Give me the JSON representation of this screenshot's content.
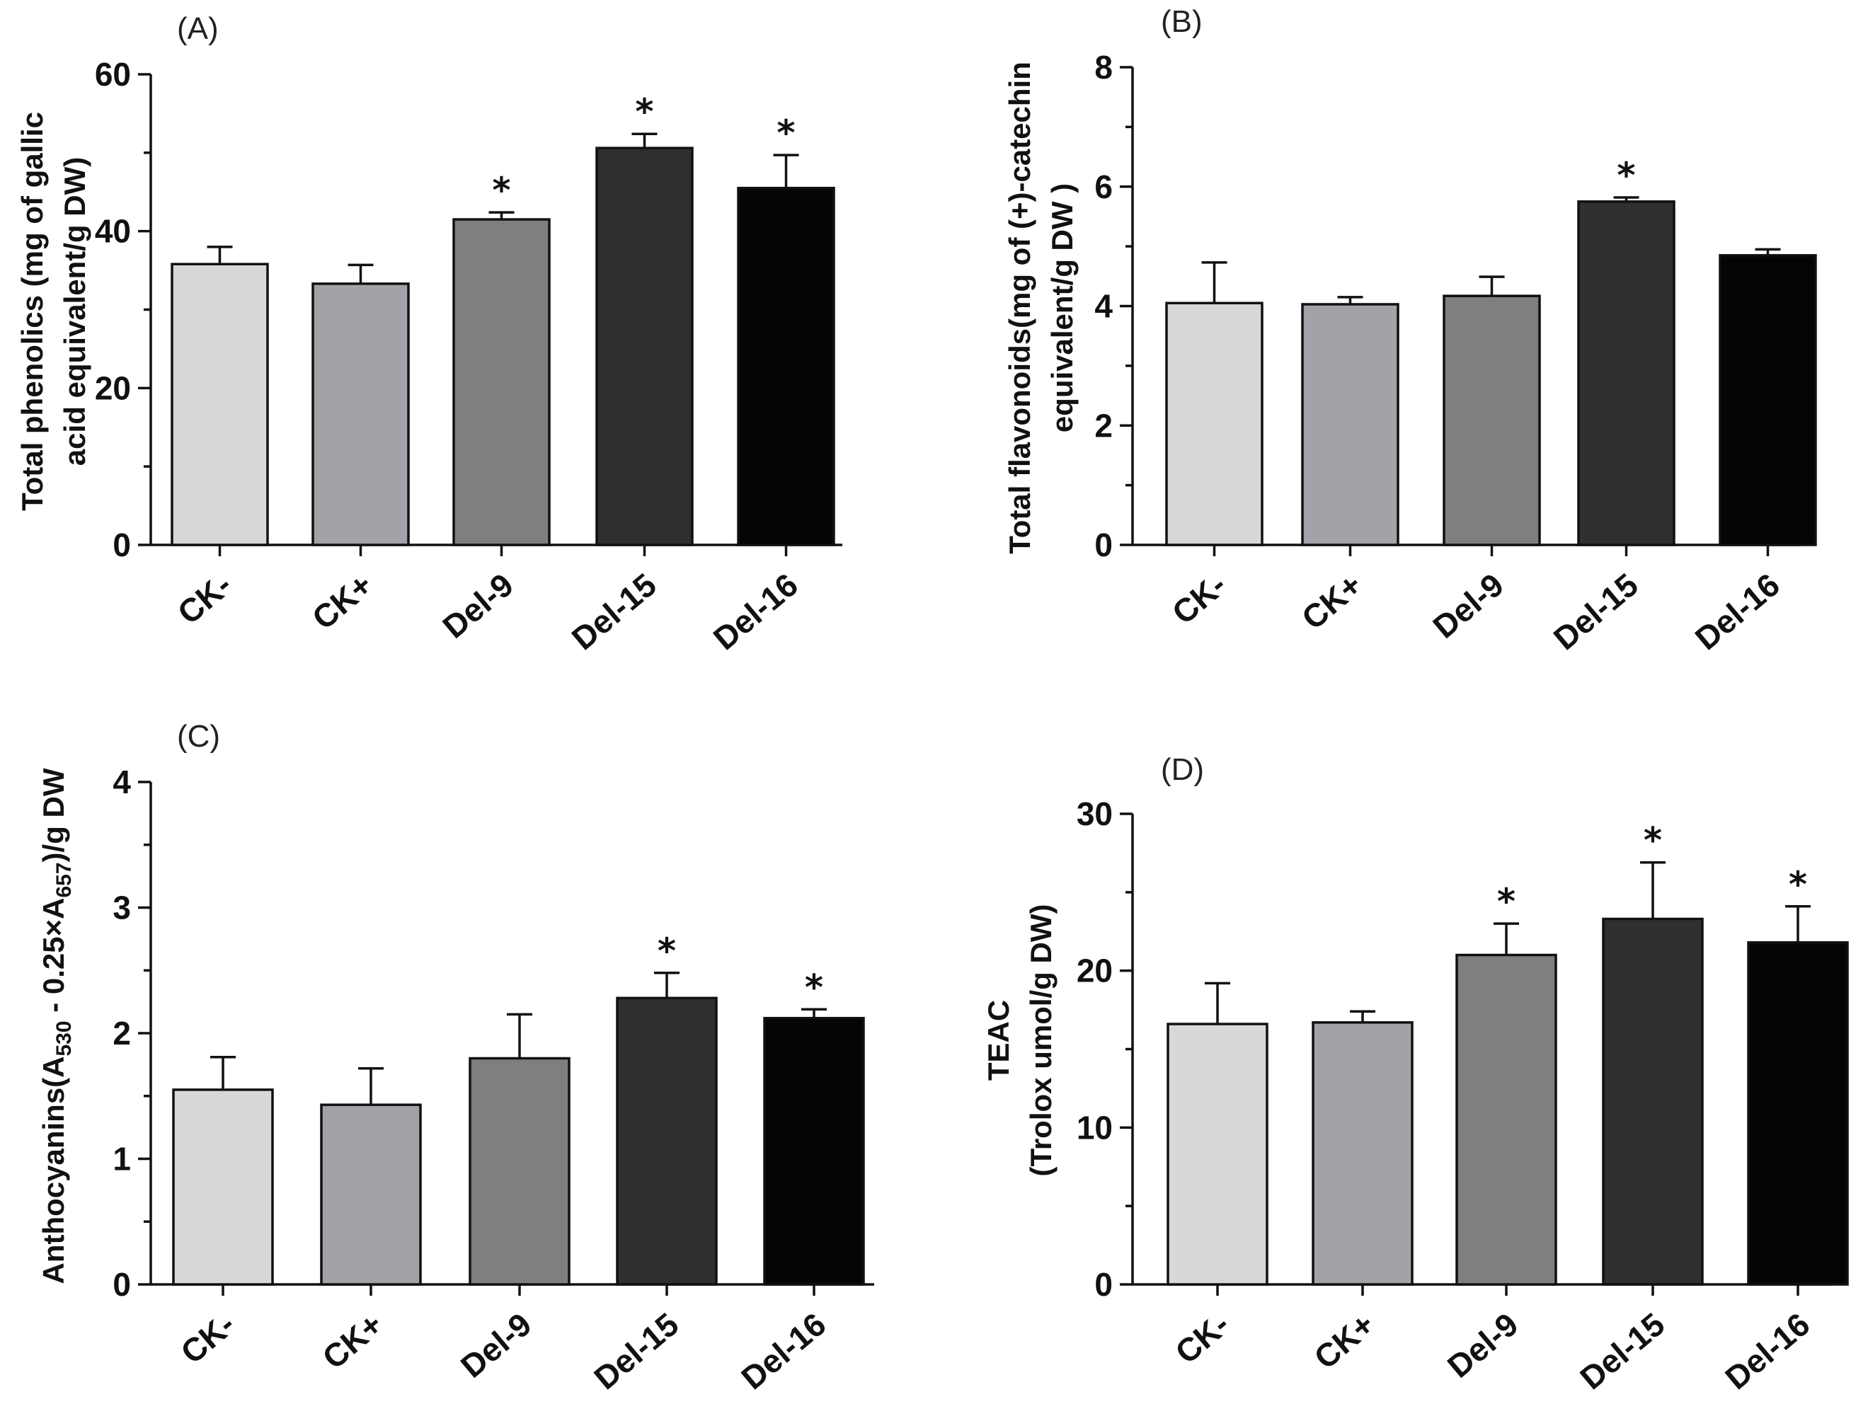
{
  "colors": {
    "CK-": "#d8d8d8",
    "CK+": "#a2a2a8",
    "Del-9": "#7f7f7f",
    "Del-15": "#2f2f2f",
    "Del-16": "#050505"
  },
  "chart_data": [
    {
      "type": "bar",
      "panel": "(A)",
      "categories": [
        "CK-",
        "CK+",
        "Del-9",
        "Del-15",
        "Del-16"
      ],
      "values": [
        35.8,
        33.3,
        41.5,
        50.6,
        45.5
      ],
      "errors": [
        2.2,
        2.4,
        0.9,
        1.8,
        4.2
      ],
      "significant": [
        "",
        "",
        "*",
        "*",
        "*"
      ],
      "ylabel_lines": [
        "Total phenolics (mg of gallic",
        "acid equivalent/g DW)"
      ],
      "ylim": [
        0,
        60
      ],
      "yticks": [
        0,
        20,
        40,
        60
      ],
      "tick_labels": [
        "0",
        "20",
        "40",
        "60"
      ]
    },
    {
      "type": "bar",
      "panel": "(B)",
      "categories": [
        "CK-",
        "CK+",
        "Del-9",
        "Del-15",
        "Del-16"
      ],
      "values": [
        4.05,
        4.03,
        4.17,
        5.75,
        4.85
      ],
      "errors": [
        0.68,
        0.12,
        0.32,
        0.07,
        0.1
      ],
      "significant": [
        "",
        "",
        "",
        "*",
        ""
      ],
      "ylabel_lines": [
        "Total flavonoids(mg of (+)-catechin",
        "equivalent/g DW )"
      ],
      "ylim": [
        0,
        8
      ],
      "yticks": [
        0,
        2,
        4,
        6,
        8
      ],
      "tick_labels": [
        "0",
        "2",
        "4",
        "6",
        "8"
      ]
    },
    {
      "type": "bar",
      "panel": "(C)",
      "categories": [
        "CK-",
        "CK+",
        "Del-9",
        "Del-15",
        "Del-16"
      ],
      "values": [
        1.55,
        1.43,
        1.8,
        2.28,
        2.12
      ],
      "errors": [
        0.26,
        0.29,
        0.35,
        0.2,
        0.07
      ],
      "significant": [
        "",
        "",
        "",
        "*",
        "*"
      ],
      "ylabel_parts": [
        "Anthocyanins(A",
        "530",
        " - 0.25×A",
        "657",
        ")/g DW"
      ],
      "ylim": [
        0,
        4
      ],
      "yticks": [
        0,
        1,
        2,
        3,
        4
      ],
      "tick_labels": [
        "0",
        "1",
        "2",
        "3",
        "4"
      ]
    },
    {
      "type": "bar",
      "panel": "(D)",
      "categories": [
        "CK-",
        "CK+",
        "Del-9",
        "Del-15",
        "Del-16"
      ],
      "values": [
        16.6,
        16.7,
        21.0,
        23.3,
        21.8
      ],
      "errors": [
        2.6,
        0.7,
        2.0,
        3.6,
        2.3
      ],
      "significant": [
        "",
        "",
        "*",
        "*",
        "*"
      ],
      "ylabel_lines": [
        "TEAC",
        "(Trolox umol/g DW)"
      ],
      "ylim": [
        0,
        30
      ],
      "yticks": [
        0,
        10,
        20,
        30
      ],
      "tick_labels": [
        "0",
        "10",
        "20",
        "30"
      ]
    }
  ]
}
